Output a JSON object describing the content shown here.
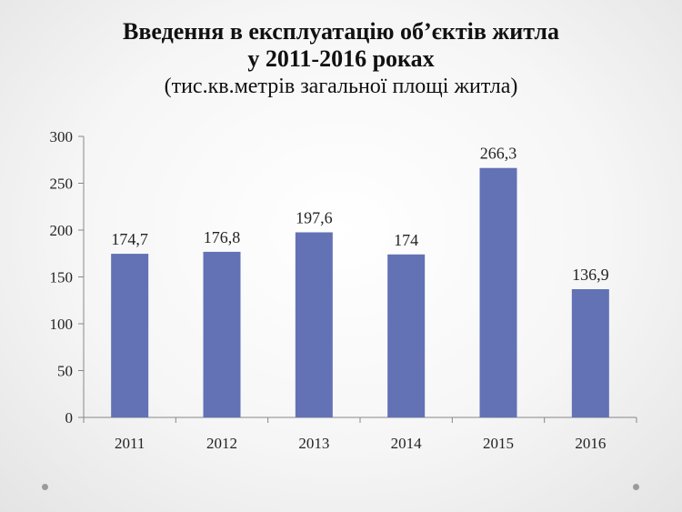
{
  "chart_data": {
    "type": "bar",
    "title_line1": "Введення в експлуатацію  об’єктів житла",
    "title_line2": "у 2011-2016 роках",
    "subtitle": "(тис.кв.метрів загальної площі житла)",
    "categories": [
      "2011",
      "2012",
      "2013",
      "2014",
      "2015",
      "2016"
    ],
    "values": [
      174.7,
      176.8,
      197.6,
      174,
      266.3,
      136.9
    ],
    "value_labels": [
      "174,7",
      "176,8",
      "197,6",
      "174",
      "266,3",
      "136,9"
    ],
    "yticks": [
      "0",
      "50",
      "100",
      "150",
      "200",
      "250",
      "300"
    ],
    "ylim": [
      0,
      300
    ],
    "bar_color": "#6272b5",
    "grid": false,
    "legend": "none"
  }
}
